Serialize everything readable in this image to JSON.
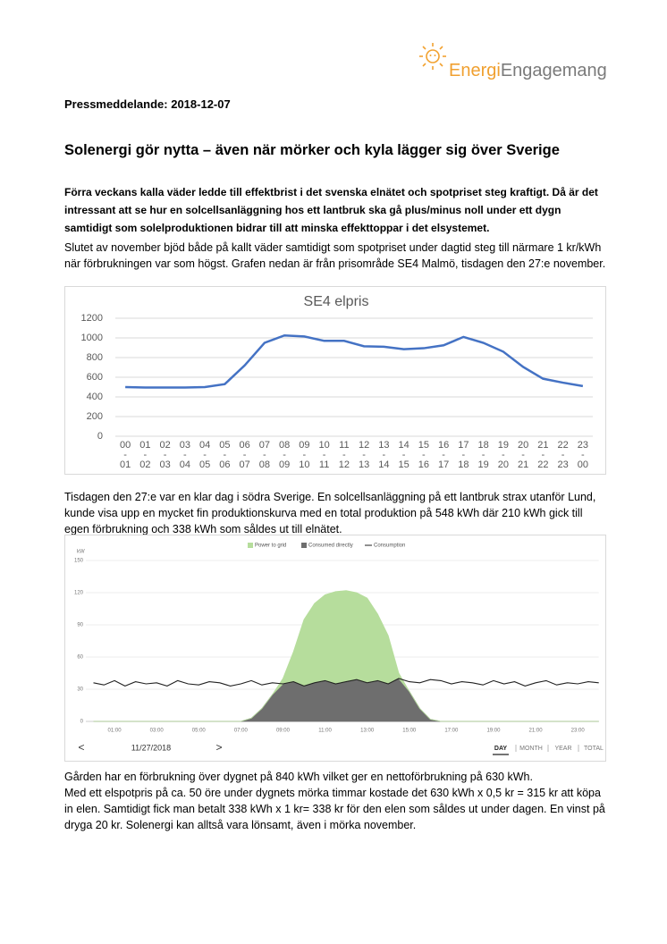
{
  "header": {
    "logo_part1": "Energi",
    "logo_part2": "Engagemang"
  },
  "document": {
    "date_line": "Pressmeddelande: 2018-12-07",
    "title": "Solenergi gör nytta – även när mörker och kyla lägger sig över Sverige",
    "lead": "Förra veckans kalla väder ledde till effektbrist i det svenska elnätet och spotpriset steg kraftigt. Då är det intressant att se hur en solcellsanläggning hos ett lantbruk ska gå plus/minus noll under ett dygn samtidigt som solelproduktionen bidrar till att minska effekttoppar i det elsystemet.",
    "paragraphs": [
      "Slutet av november bjöd både på kallt väder samtidigt som spotpriset under dagtid steg till närmare 1 kr/kWh när förbrukningen var som högst. Grafen nedan är från prisområde SE4 Malmö, tisdagen den 27:e november.",
      "Tisdagen den 27:e var en klar dag i södra Sverige. En solcellsanläggning på ett lantbruk strax utanför Lund, kunde visa upp en mycket fin produktionskurva med en total produktion på 548 kWh där 210 kWh gick till egen förbrukning och 338 kWh som såldes ut till elnätet.",
      "Gården har en förbrukning över dygnet på 840 kWh vilket ger en nettoförbrukning på 630 kWh.",
      "Med ett elspotpris på ca. 50 öre under dygnets mörka timmar kostade det 630 kWh x 0,5 kr = 315 kr att köpa in elen. Samtidigt fick man betalt 338 kWh x 1 kr= 338 kr för den elen som såldes ut under dagen. En vinst på dryga 20 kr. Solenergi kan alltså vara lönsamt, även i mörka november."
    ]
  },
  "chart_data": [
    {
      "type": "line",
      "title": "SE4 elpris",
      "categories": [
        "00 - 01",
        "01 - 02",
        "02 - 03",
        "03 - 04",
        "04 - 05",
        "05 - 06",
        "06 - 07",
        "07 - 08",
        "08 - 09",
        "09 - 10",
        "10 - 11",
        "11 - 12",
        "12 - 13",
        "13 - 14",
        "14 - 15",
        "15 - 16",
        "16 - 17",
        "17 - 18",
        "18 - 19",
        "19 - 20",
        "20 - 21",
        "21 - 22",
        "22 - 23",
        "23 - 00"
      ],
      "values": [
        500,
        495,
        495,
        495,
        500,
        530,
        720,
        950,
        1025,
        1015,
        970,
        970,
        915,
        910,
        885,
        895,
        925,
        1010,
        950,
        860,
        705,
        585,
        545,
        510
      ],
      "color": "#4472c4",
      "ylim": [
        0,
        1200
      ],
      "yticks": [
        0,
        200,
        400,
        600,
        800,
        1000,
        1200
      ],
      "grid": true
    },
    {
      "type": "area",
      "y_label": "kW",
      "x": [
        0,
        0.5,
        1,
        1.5,
        2,
        2.5,
        3,
        3.5,
        4,
        4.5,
        5,
        5.5,
        6,
        6.5,
        7,
        7.5,
        8,
        8.5,
        9,
        9.5,
        10,
        10.5,
        11,
        11.5,
        12,
        12.5,
        13,
        13.5,
        14,
        14.5,
        15,
        15.5,
        16,
        16.5,
        17,
        17.5,
        18,
        18.5,
        19,
        19.5,
        20,
        20.5,
        21,
        21.5,
        22,
        22.5,
        23,
        23.5,
        24
      ],
      "series": [
        {
          "name": "Power to grid",
          "color": "#b6dd9c",
          "type": "area",
          "values": [
            0,
            0,
            0,
            0,
            0,
            0,
            0,
            0,
            0,
            0,
            0,
            0,
            0,
            0,
            0,
            0,
            0,
            0,
            5,
            28,
            62,
            74,
            80,
            86,
            85,
            81,
            79,
            62,
            45,
            5,
            0,
            0,
            0,
            0,
            0,
            0,
            0,
            0,
            0,
            0,
            0,
            0,
            0,
            0,
            0,
            0,
            0,
            0,
            0
          ]
        },
        {
          "name": "Consumed directly",
          "color": "#6e6e6e",
          "type": "area",
          "values": [
            0,
            0,
            0,
            0,
            0,
            0,
            0,
            0,
            0,
            0,
            0,
            0,
            0,
            0,
            0,
            3,
            12,
            25,
            35,
            37,
            33,
            36,
            38,
            35,
            37,
            39,
            36,
            38,
            35,
            40,
            28,
            12,
            2,
            0,
            0,
            0,
            0,
            0,
            0,
            0,
            0,
            0,
            0,
            0,
            0,
            0,
            0,
            0,
            0
          ]
        },
        {
          "name": "Consumption",
          "color": "#222222",
          "type": "line",
          "values": [
            36,
            34,
            38,
            33,
            37,
            35,
            36,
            33,
            38,
            35,
            34,
            37,
            36,
            33,
            35,
            38,
            34,
            36,
            35,
            37,
            33,
            36,
            38,
            35,
            37,
            39,
            36,
            38,
            35,
            40,
            37,
            36,
            39,
            38,
            35,
            37,
            36,
            34,
            38,
            35,
            37,
            33,
            36,
            38,
            34,
            36,
            35,
            37,
            36
          ]
        }
      ],
      "xlim": [
        0,
        24
      ],
      "xticks": [
        {
          "value": 1,
          "label": "01:00"
        },
        {
          "value": 3,
          "label": "03:00"
        },
        {
          "value": 5,
          "label": "05:00"
        },
        {
          "value": 7,
          "label": "07:00"
        },
        {
          "value": 9,
          "label": "09:00"
        },
        {
          "value": 11,
          "label": "11:00"
        },
        {
          "value": 13,
          "label": "13:00"
        },
        {
          "value": 15,
          "label": "15:00"
        },
        {
          "value": 17,
          "label": "17:00"
        },
        {
          "value": 19,
          "label": "19:00"
        },
        {
          "value": 21,
          "label": "21:00"
        },
        {
          "value": 23,
          "label": "23:00"
        }
      ],
      "ylim": [
        0,
        150
      ],
      "yticks": [
        0,
        30,
        60,
        90,
        120,
        150
      ],
      "grid": true,
      "controls": {
        "prev": "<",
        "date": "11/27/2018",
        "next": ">",
        "periods": [
          "DAY",
          "MONTH",
          "YEAR",
          "TOTAL"
        ]
      }
    }
  ]
}
